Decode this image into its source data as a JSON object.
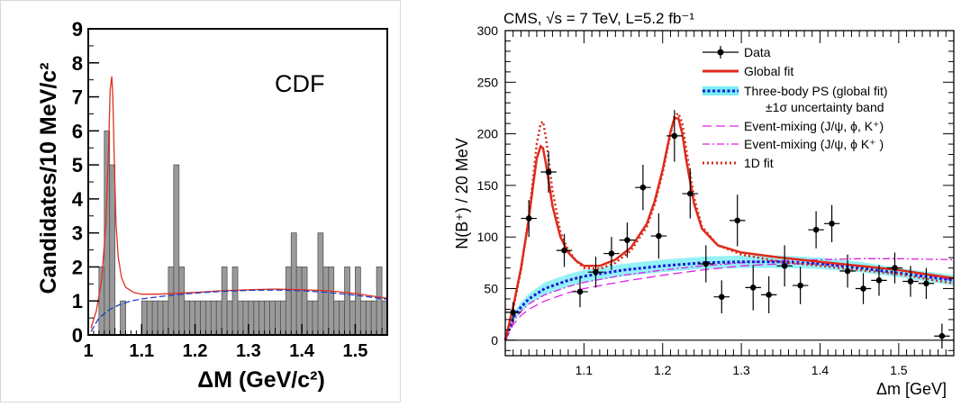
{
  "chart_data": [
    {
      "type": "histogram",
      "label": "CDF",
      "xlabel": "ΔM  (GeV/c²)",
      "ylabel": "Candidates/10 MeV/c²",
      "xlim": [
        1.0,
        1.56
      ],
      "ylim": [
        0,
        9
      ],
      "xticks": [
        1,
        1.1,
        1.2,
        1.3,
        1.4,
        1.5
      ],
      "xtick_labels": [
        "1",
        "1.1",
        "1.2",
        "1.3",
        "1.4",
        "1.5"
      ],
      "yticks": [
        0,
        1,
        2,
        3,
        4,
        5,
        6,
        7,
        8,
        9
      ],
      "ytick_labels": [
        "0",
        "1",
        "2",
        "3",
        "4",
        "5",
        "6",
        "7",
        "8",
        "9"
      ],
      "bin_width": 0.01,
      "bins": [
        [
          1.02,
          2
        ],
        [
          1.03,
          6
        ],
        [
          1.04,
          5
        ],
        [
          1.06,
          1
        ],
        [
          1.1,
          1
        ],
        [
          1.11,
          1
        ],
        [
          1.12,
          1
        ],
        [
          1.13,
          1
        ],
        [
          1.14,
          1
        ],
        [
          1.15,
          2
        ],
        [
          1.16,
          5
        ],
        [
          1.17,
          2
        ],
        [
          1.18,
          1
        ],
        [
          1.19,
          1
        ],
        [
          1.2,
          1
        ],
        [
          1.21,
          1
        ],
        [
          1.22,
          1
        ],
        [
          1.23,
          1
        ],
        [
          1.24,
          1
        ],
        [
          1.25,
          2
        ],
        [
          1.26,
          1
        ],
        [
          1.27,
          2
        ],
        [
          1.28,
          1
        ],
        [
          1.29,
          1
        ],
        [
          1.3,
          1
        ],
        [
          1.31,
          1
        ],
        [
          1.32,
          1
        ],
        [
          1.33,
          1
        ],
        [
          1.34,
          1
        ],
        [
          1.35,
          1
        ],
        [
          1.36,
          1
        ],
        [
          1.37,
          2
        ],
        [
          1.38,
          3
        ],
        [
          1.39,
          2
        ],
        [
          1.4,
          2
        ],
        [
          1.41,
          1
        ],
        [
          1.42,
          1
        ],
        [
          1.43,
          3
        ],
        [
          1.44,
          2
        ],
        [
          1.45,
          2
        ],
        [
          1.46,
          1
        ],
        [
          1.47,
          1
        ],
        [
          1.48,
          2
        ],
        [
          1.49,
          1
        ],
        [
          1.5,
          2
        ],
        [
          1.51,
          1
        ],
        [
          1.52,
          1
        ],
        [
          1.53,
          1
        ],
        [
          1.54,
          2
        ],
        [
          1.55,
          1
        ]
      ],
      "series": [
        {
          "color": "#e03020",
          "x": [
            1.005,
            1.015,
            1.025,
            1.033,
            1.038,
            1.041,
            1.044,
            1.046,
            1.049,
            1.052,
            1.056,
            1.062,
            1.07,
            1.085,
            1.1,
            1.13,
            1.2,
            1.25,
            1.3,
            1.35,
            1.4,
            1.45,
            1.5,
            1.53,
            1.56
          ],
          "y": [
            0.2,
            0.7,
            1.6,
            3.3,
            5.5,
            7.2,
            7.6,
            7.0,
            5.0,
            3.3,
            2.3,
            1.7,
            1.4,
            1.25,
            1.2,
            1.2,
            1.25,
            1.3,
            1.33,
            1.35,
            1.33,
            1.3,
            1.22,
            1.15,
            1.08
          ]
        },
        {
          "color": "#1f3fc8",
          "x": [
            1.005,
            1.02,
            1.04,
            1.06,
            1.08,
            1.1,
            1.15,
            1.2,
            1.25,
            1.3,
            1.35,
            1.4,
            1.45,
            1.5,
            1.56
          ],
          "y": [
            0.1,
            0.5,
            0.75,
            0.9,
            1.0,
            1.06,
            1.16,
            1.23,
            1.28,
            1.31,
            1.32,
            1.3,
            1.25,
            1.17,
            1.05
          ]
        }
      ]
    },
    {
      "type": "scatter",
      "title": "CMS, √s = 7 TeV, L=5.2 fb⁻¹",
      "xlabel": "Δm [GeV]",
      "ylabel": "N(B⁺) / 20 MeV",
      "xlim": [
        1.0,
        1.57
      ],
      "ylim": [
        -15,
        300
      ],
      "xticks": [
        1.1,
        1.2,
        1.3,
        1.4,
        1.5
      ],
      "xtick_labels": [
        "1.1",
        "1.2",
        "1.3",
        "1.4",
        "1.5"
      ],
      "yticks": [
        0,
        50,
        100,
        150,
        200,
        250,
        300
      ],
      "ytick_labels": [
        "0",
        "50",
        "100",
        "150",
        "200",
        "250",
        "300"
      ],
      "legend": {
        "placement": "top-right",
        "entries": [
          "Data",
          "Global fit",
          "Three-body PS (global fit)",
          "±1σ  uncertainty band",
          "Event-mixing (J/ψ, ϕ, K⁺)",
          "Event-mixing (J/ψ, ϕ K⁺ )",
          "1D fit"
        ]
      },
      "data_points": {
        "x": [
          1.01,
          1.03,
          1.055,
          1.075,
          1.095,
          1.115,
          1.135,
          1.155,
          1.175,
          1.195,
          1.215,
          1.235,
          1.255,
          1.275,
          1.295,
          1.315,
          1.335,
          1.355,
          1.375,
          1.395,
          1.415,
          1.435,
          1.455,
          1.475,
          1.495,
          1.515,
          1.535,
          1.555
        ],
        "y": [
          27,
          118,
          163,
          87,
          47,
          66,
          84,
          97,
          148,
          101,
          198,
          142,
          74,
          42,
          116,
          51,
          44,
          72,
          53,
          107,
          113,
          67,
          50,
          58,
          70,
          57,
          55,
          4
        ],
        "yerr": [
          10,
          18,
          20,
          16,
          15,
          15,
          16,
          17,
          22,
          22,
          25,
          24,
          18,
          16,
          25,
          22,
          18,
          20,
          18,
          18,
          18,
          16,
          15,
          15,
          15,
          15,
          15,
          12
        ]
      },
      "curves": [
        {
          "name": "Global fit",
          "color": "#e02a1a",
          "x": [
            1.0,
            1.01,
            1.02,
            1.03,
            1.035,
            1.04,
            1.045,
            1.048,
            1.052,
            1.06,
            1.07,
            1.08,
            1.09,
            1.1,
            1.12,
            1.14,
            1.16,
            1.18,
            1.19,
            1.2,
            1.21,
            1.215,
            1.22,
            1.225,
            1.23,
            1.24,
            1.25,
            1.27,
            1.3,
            1.35,
            1.4,
            1.45,
            1.5,
            1.57
          ],
          "y": [
            0,
            32,
            70,
            118,
            148,
            176,
            188,
            186,
            170,
            130,
            100,
            85,
            77,
            72,
            72,
            78,
            90,
            113,
            135,
            165,
            202,
            215,
            215,
            200,
            175,
            132,
            108,
            92,
            85,
            80,
            76,
            72,
            68,
            60
          ]
        },
        {
          "name": "1D fit",
          "color": "#d42a1a",
          "x": [
            1.0,
            1.01,
            1.02,
            1.03,
            1.035,
            1.04,
            1.045,
            1.048,
            1.052,
            1.06,
            1.07,
            1.08,
            1.09,
            1.1,
            1.12,
            1.14,
            1.16,
            1.18,
            1.19,
            1.2,
            1.21,
            1.215,
            1.22,
            1.225,
            1.23,
            1.24,
            1.25,
            1.27,
            1.3,
            1.35,
            1.4,
            1.45,
            1.5,
            1.57
          ],
          "y": [
            0,
            30,
            68,
            120,
            155,
            190,
            210,
            212,
            195,
            145,
            105,
            87,
            77,
            70,
            69,
            75,
            87,
            110,
            132,
            162,
            200,
            217,
            220,
            210,
            185,
            138,
            110,
            92,
            83,
            76,
            72,
            68,
            64,
            55
          ]
        },
        {
          "name": "Three-body PS (global fit)",
          "color": "#1a1ad8",
          "x": [
            1.0,
            1.01,
            1.02,
            1.03,
            1.05,
            1.08,
            1.1,
            1.15,
            1.2,
            1.25,
            1.3,
            1.35,
            1.4,
            1.45,
            1.5,
            1.57
          ],
          "y": [
            0,
            22,
            32,
            40,
            50,
            58,
            62,
            68,
            72,
            75,
            76,
            76,
            74,
            70,
            65,
            58
          ]
        },
        {
          "name": "Event-mixing (J/ψ, ϕ, K⁺)",
          "color": "#e020e0",
          "x": [
            1.0,
            1.01,
            1.02,
            1.03,
            1.05,
            1.08,
            1.1,
            1.15,
            1.2,
            1.25,
            1.3,
            1.35,
            1.4,
            1.45,
            1.5,
            1.57
          ],
          "y": [
            0,
            15,
            24,
            30,
            38,
            46,
            50,
            57,
            63,
            68,
            72,
            74,
            74,
            72,
            68,
            58
          ]
        },
        {
          "name": "Event-mixing (J/ψ, ϕ K⁺ )",
          "color": "#e020e0",
          "x": [
            1.0,
            1.01,
            1.02,
            1.03,
            1.05,
            1.08,
            1.1,
            1.15,
            1.2,
            1.25,
            1.3,
            1.35,
            1.4,
            1.45,
            1.5,
            1.57
          ],
          "y": [
            0,
            18,
            28,
            35,
            44,
            52,
            56,
            63,
            68,
            72,
            75,
            77,
            78,
            79,
            79,
            78
          ]
        }
      ],
      "band": {
        "name": "±1σ  uncertainty band",
        "color": "#3de8f0",
        "x": [
          1.0,
          1.01,
          1.02,
          1.03,
          1.05,
          1.08,
          1.1,
          1.15,
          1.2,
          1.25,
          1.3,
          1.35,
          1.4,
          1.45,
          1.5,
          1.57
        ],
        "low": [
          0,
          18,
          27,
          35,
          44,
          52,
          56,
          62,
          66,
          69,
          70,
          70,
          69,
          66,
          61,
          53
        ],
        "high": [
          0,
          26,
          37,
          45,
          56,
          64,
          68,
          74,
          78,
          81,
          82,
          82,
          80,
          76,
          70,
          63
        ]
      }
    }
  ]
}
